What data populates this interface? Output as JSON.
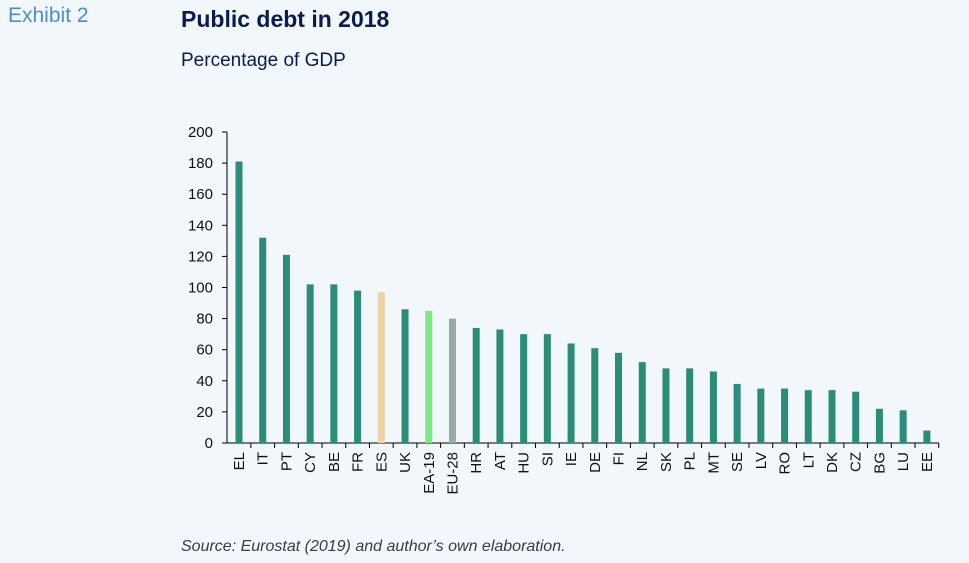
{
  "header": {
    "exhibit": "Exhibit 2",
    "title": "Public debt in 2018",
    "subtitle": "Percentage of GDP"
  },
  "footer": {
    "source": "Source: Eurostat (2019) and author’s own elaboration."
  },
  "chart_data": {
    "type": "bar",
    "categories": [
      "EL",
      "IT",
      "PT",
      "CY",
      "BE",
      "FR",
      "ES",
      "UK",
      "EA-19",
      "EU-28",
      "HR",
      "AT",
      "HU",
      "SI",
      "IE",
      "DE",
      "FI",
      "NL",
      "SK",
      "PL",
      "MT",
      "SE",
      "LV",
      "RO",
      "LT",
      "DK",
      "CZ",
      "BG",
      "LU",
      "EE"
    ],
    "values": [
      181,
      132,
      121,
      102,
      102,
      98,
      97,
      86,
      85,
      80,
      74,
      73,
      70,
      70,
      64,
      61,
      58,
      52,
      48,
      48,
      46,
      38,
      35,
      35,
      34,
      34,
      33,
      22,
      21,
      8
    ],
    "colors": {
      "default": "#2a8c79",
      "ES": "#f0d2a8",
      "EA-19": "#7ee87e",
      "EU-28": "#97aaa8"
    },
    "ylim": [
      0,
      200
    ],
    "yticks": [
      0,
      20,
      40,
      60,
      80,
      100,
      120,
      140,
      160,
      180,
      200
    ],
    "grid": false,
    "legend": "none"
  }
}
